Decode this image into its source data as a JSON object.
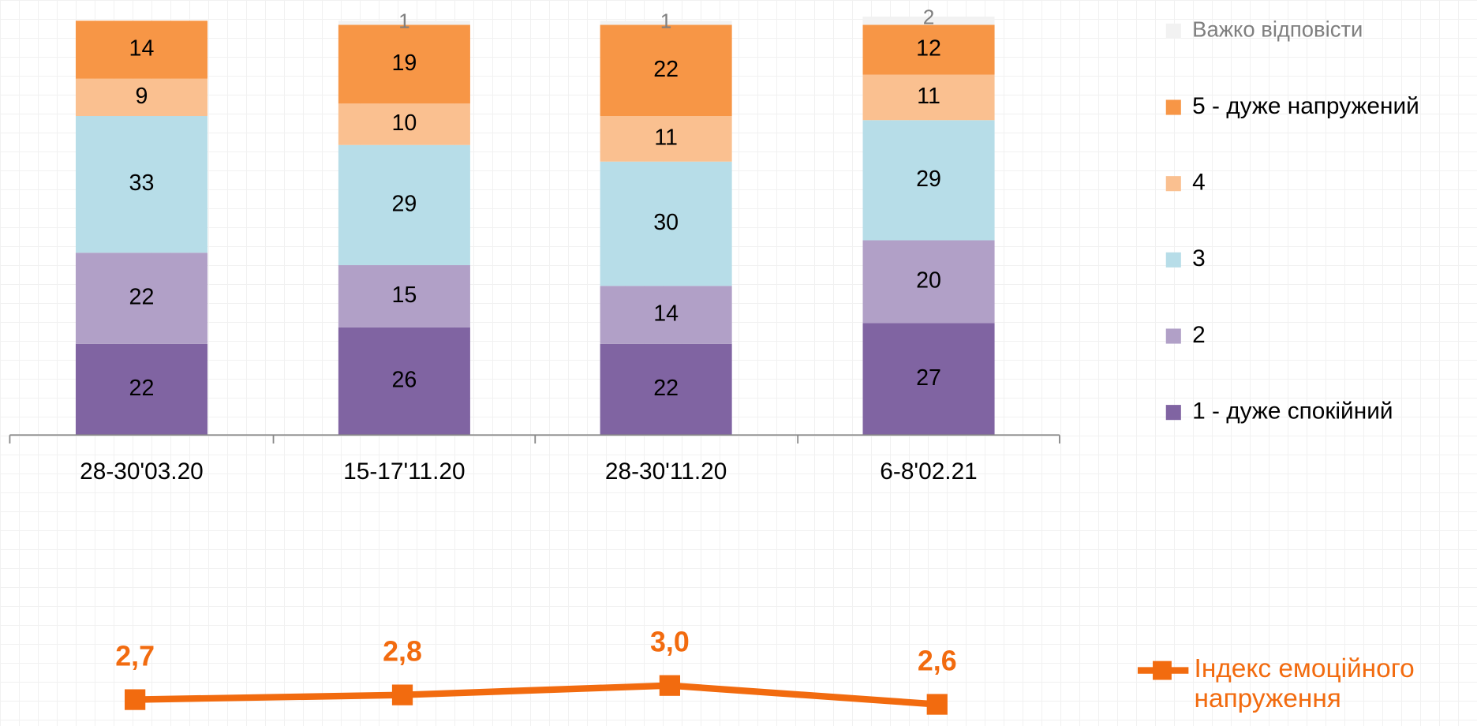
{
  "chart_data": [
    {
      "type": "stacked_bar",
      "categories": [
        "28-30'03.20",
        "15-17'11.20",
        "28-30'11.20",
        "6-8'02.21"
      ],
      "ylim": [
        0,
        100
      ],
      "series": [
        {
          "name": "1 - дуже спокійний",
          "color": "#8064a2",
          "values": [
            22,
            26,
            22,
            27
          ]
        },
        {
          "name": "2",
          "color": "#b1a0c7",
          "values": [
            22,
            15,
            14,
            20
          ]
        },
        {
          "name": "3",
          "color": "#b7dde8",
          "values": [
            33,
            29,
            30,
            29
          ]
        },
        {
          "name": "4",
          "color": "#fac090",
          "values": [
            9,
            10,
            11,
            11
          ]
        },
        {
          "name": "5 - дуже напружений",
          "color": "#f79646",
          "values": [
            14,
            19,
            22,
            12
          ]
        },
        {
          "name": "Важко відповісти",
          "color": "#f2f2f2",
          "values": [
            null,
            1,
            1,
            2
          ]
        }
      ]
    },
    {
      "type": "line",
      "ylim": [
        2,
        4
      ],
      "series": [
        {
          "name": "Індекс емоційного напруження",
          "color": "#f26b0f",
          "values": [
            2.7,
            2.8,
            3.0,
            2.6
          ],
          "value_labels": [
            "2,7",
            "2,8",
            "3,0",
            "2,6"
          ]
        }
      ]
    }
  ]
}
